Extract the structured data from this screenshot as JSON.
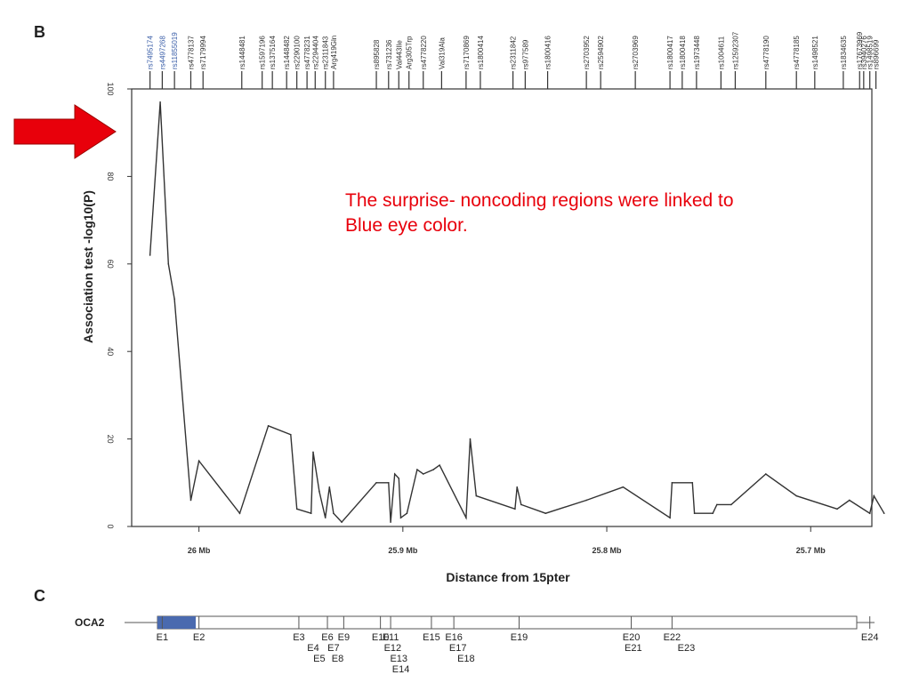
{
  "panels": {
    "b_label": "B",
    "c_label": "C"
  },
  "annotation": {
    "line1": "The surprise- noncoding regions were linked to",
    "line2": "Blue eye color."
  },
  "colors": {
    "line": "#333333",
    "highlight_snp": "#3a5ea8",
    "arrow": "#e8000b",
    "annotation": "#e8000b",
    "exon_fill": "#4a6aaf"
  },
  "icons": {
    "arrow": "red-right-arrow"
  },
  "chart_data": {
    "type": "line",
    "ylabel": "Association test -log10(P)",
    "xlabel": "Distance from 15pter",
    "ylim": [
      0,
      100
    ],
    "yticks": [
      0,
      20,
      40,
      60,
      80,
      100
    ],
    "xticks": [
      {
        "value": 26.0,
        "label": "26 Mb"
      },
      {
        "value": 25.9,
        "label": "25.9 Mb"
      },
      {
        "value": 25.8,
        "label": "25.8 Mb"
      },
      {
        "value": 25.7,
        "label": "25.7 Mb"
      }
    ],
    "xlim_reversed": [
      26.033,
      25.67
    ],
    "grid": false,
    "snp_labels": [
      {
        "label": "rs7495174",
        "pos": 26.024,
        "highlight": true
      },
      {
        "label": "rs4497268",
        "pos": 26.018,
        "highlight": true
      },
      {
        "label": "rs11855019",
        "pos": 26.012,
        "highlight": true
      },
      {
        "label": "rs4778137",
        "pos": 26.004,
        "highlight": false
      },
      {
        "label": "rs7179994",
        "pos": 25.998,
        "highlight": false
      },
      {
        "label": "rs1448481",
        "pos": 25.979,
        "highlight": false
      },
      {
        "label": "rs1597196",
        "pos": 25.969,
        "highlight": false
      },
      {
        "label": "rs1375164",
        "pos": 25.964,
        "highlight": false
      },
      {
        "label": "rs1448482",
        "pos": 25.957,
        "highlight": false
      },
      {
        "label": "rs2290100",
        "pos": 25.952,
        "highlight": false
      },
      {
        "label": "rs4778231",
        "pos": 25.947,
        "highlight": false
      },
      {
        "label": "rs2294404",
        "pos": 25.943,
        "highlight": false
      },
      {
        "label": "rs2311843",
        "pos": 25.938,
        "highlight": false
      },
      {
        "label": "Arg419Gln",
        "pos": 25.934,
        "highlight": false
      },
      {
        "label": "rs895828",
        "pos": 25.913,
        "highlight": false
      },
      {
        "label": "rs731236",
        "pos": 25.907,
        "highlight": false
      },
      {
        "label": "Val443Ile",
        "pos": 25.902,
        "highlight": false
      },
      {
        "label": "Arg305Trp",
        "pos": 25.897,
        "highlight": false
      },
      {
        "label": "rs4778220",
        "pos": 25.89,
        "highlight": false
      },
      {
        "label": "Val319Ala",
        "pos": 25.881,
        "highlight": false
      },
      {
        "label": "rs7170869",
        "pos": 25.869,
        "highlight": false
      },
      {
        "label": "rs1800414",
        "pos": 25.862,
        "highlight": false
      },
      {
        "label": "rs2311842",
        "pos": 25.846,
        "highlight": false
      },
      {
        "label": "rs977589",
        "pos": 25.84,
        "highlight": false
      },
      {
        "label": "rs1800416",
        "pos": 25.829,
        "highlight": false
      },
      {
        "label": "rs2703952",
        "pos": 25.81,
        "highlight": false
      },
      {
        "label": "rs2594902",
        "pos": 25.803,
        "highlight": false
      },
      {
        "label": "rs2703969",
        "pos": 25.786,
        "highlight": false
      },
      {
        "label": "rs1800417",
        "pos": 25.769,
        "highlight": false
      },
      {
        "label": "rs1800418",
        "pos": 25.763,
        "highlight": false
      },
      {
        "label": "rs1973448",
        "pos": 25.756,
        "highlight": false
      },
      {
        "label": "rs1004611",
        "pos": 25.744,
        "highlight": false
      },
      {
        "label": "rs12592307",
        "pos": 25.737,
        "highlight": false
      },
      {
        "label": "rs4778190",
        "pos": 25.722,
        "highlight": false
      },
      {
        "label": "rs4778185",
        "pos": 25.707,
        "highlight": false
      },
      {
        "label": "rs1498521",
        "pos": 25.698,
        "highlight": false
      },
      {
        "label": "rs1834635",
        "pos": 25.684,
        "highlight": false
      },
      {
        "label": "rs17673969",
        "pos": 25.676,
        "highlight": false
      },
      {
        "label": "rs3940276",
        "pos": 25.674,
        "highlight": false
      },
      {
        "label": "rs1498519",
        "pos": 25.671,
        "highlight": false
      },
      {
        "label": "rs896699",
        "pos": 25.668,
        "highlight": false
      }
    ],
    "series": [
      {
        "x": [
          26.024,
          26.019,
          26.015,
          26.012,
          26.004,
          26.0,
          25.98,
          25.966,
          25.955,
          25.952,
          25.945,
          25.944,
          25.941,
          25.938,
          25.936,
          25.934,
          25.93,
          25.913,
          25.907,
          25.906,
          25.904,
          25.902,
          25.901,
          25.898,
          25.893,
          25.89,
          25.885,
          25.882,
          25.869,
          25.867,
          25.864,
          25.845,
          25.844,
          25.842,
          25.83,
          25.81,
          25.792,
          25.769,
          25.768,
          25.758,
          25.757,
          25.748,
          25.746,
          25.739,
          25.722,
          25.707,
          25.687,
          25.681,
          25.671,
          25.669,
          25.664
        ],
        "y": [
          62,
          97,
          60,
          52,
          6,
          15,
          3,
          23,
          21,
          4,
          3,
          17,
          8,
          2,
          9,
          3,
          1,
          10,
          10,
          1,
          12,
          11,
          2,
          3,
          13,
          12,
          13,
          14,
          2,
          20,
          7,
          4,
          9,
          5,
          3,
          6,
          9,
          2,
          10,
          10,
          3,
          3,
          5,
          5,
          12,
          7,
          4,
          6,
          3,
          7,
          3
        ]
      }
    ]
  },
  "gene_track": {
    "gene": "OCA2",
    "exons": [
      {
        "label": "E1",
        "pos": 26.018,
        "row": 0
      },
      {
        "label": "E2",
        "pos": 26.0,
        "row": 0
      },
      {
        "label": "E3",
        "pos": 25.951,
        "row": 0
      },
      {
        "label": "E4",
        "pos": 25.944,
        "row": 1
      },
      {
        "label": "E5",
        "pos": 25.941,
        "row": 2
      },
      {
        "label": "E6",
        "pos": 25.937,
        "row": 0
      },
      {
        "label": "E7",
        "pos": 25.934,
        "row": 1
      },
      {
        "label": "E8",
        "pos": 25.932,
        "row": 2
      },
      {
        "label": "E9",
        "pos": 25.929,
        "row": 0
      },
      {
        "label": "E10",
        "pos": 25.911,
        "row": 0
      },
      {
        "label": "E11",
        "pos": 25.906,
        "row": 0
      },
      {
        "label": "E12",
        "pos": 25.905,
        "row": 1
      },
      {
        "label": "E13",
        "pos": 25.902,
        "row": 2
      },
      {
        "label": "E14",
        "pos": 25.901,
        "row": 3
      },
      {
        "label": "E15",
        "pos": 25.886,
        "row": 0
      },
      {
        "label": "E16",
        "pos": 25.875,
        "row": 0
      },
      {
        "label": "E17",
        "pos": 25.873,
        "row": 1
      },
      {
        "label": "E18",
        "pos": 25.869,
        "row": 2
      },
      {
        "label": "E19",
        "pos": 25.843,
        "row": 0
      },
      {
        "label": "E20",
        "pos": 25.788,
        "row": 0
      },
      {
        "label": "E21",
        "pos": 25.787,
        "row": 1
      },
      {
        "label": "E22",
        "pos": 25.768,
        "row": 0
      },
      {
        "label": "E23",
        "pos": 25.761,
        "row": 1
      },
      {
        "label": "E24",
        "pos": 25.671,
        "row": 0
      }
    ]
  }
}
